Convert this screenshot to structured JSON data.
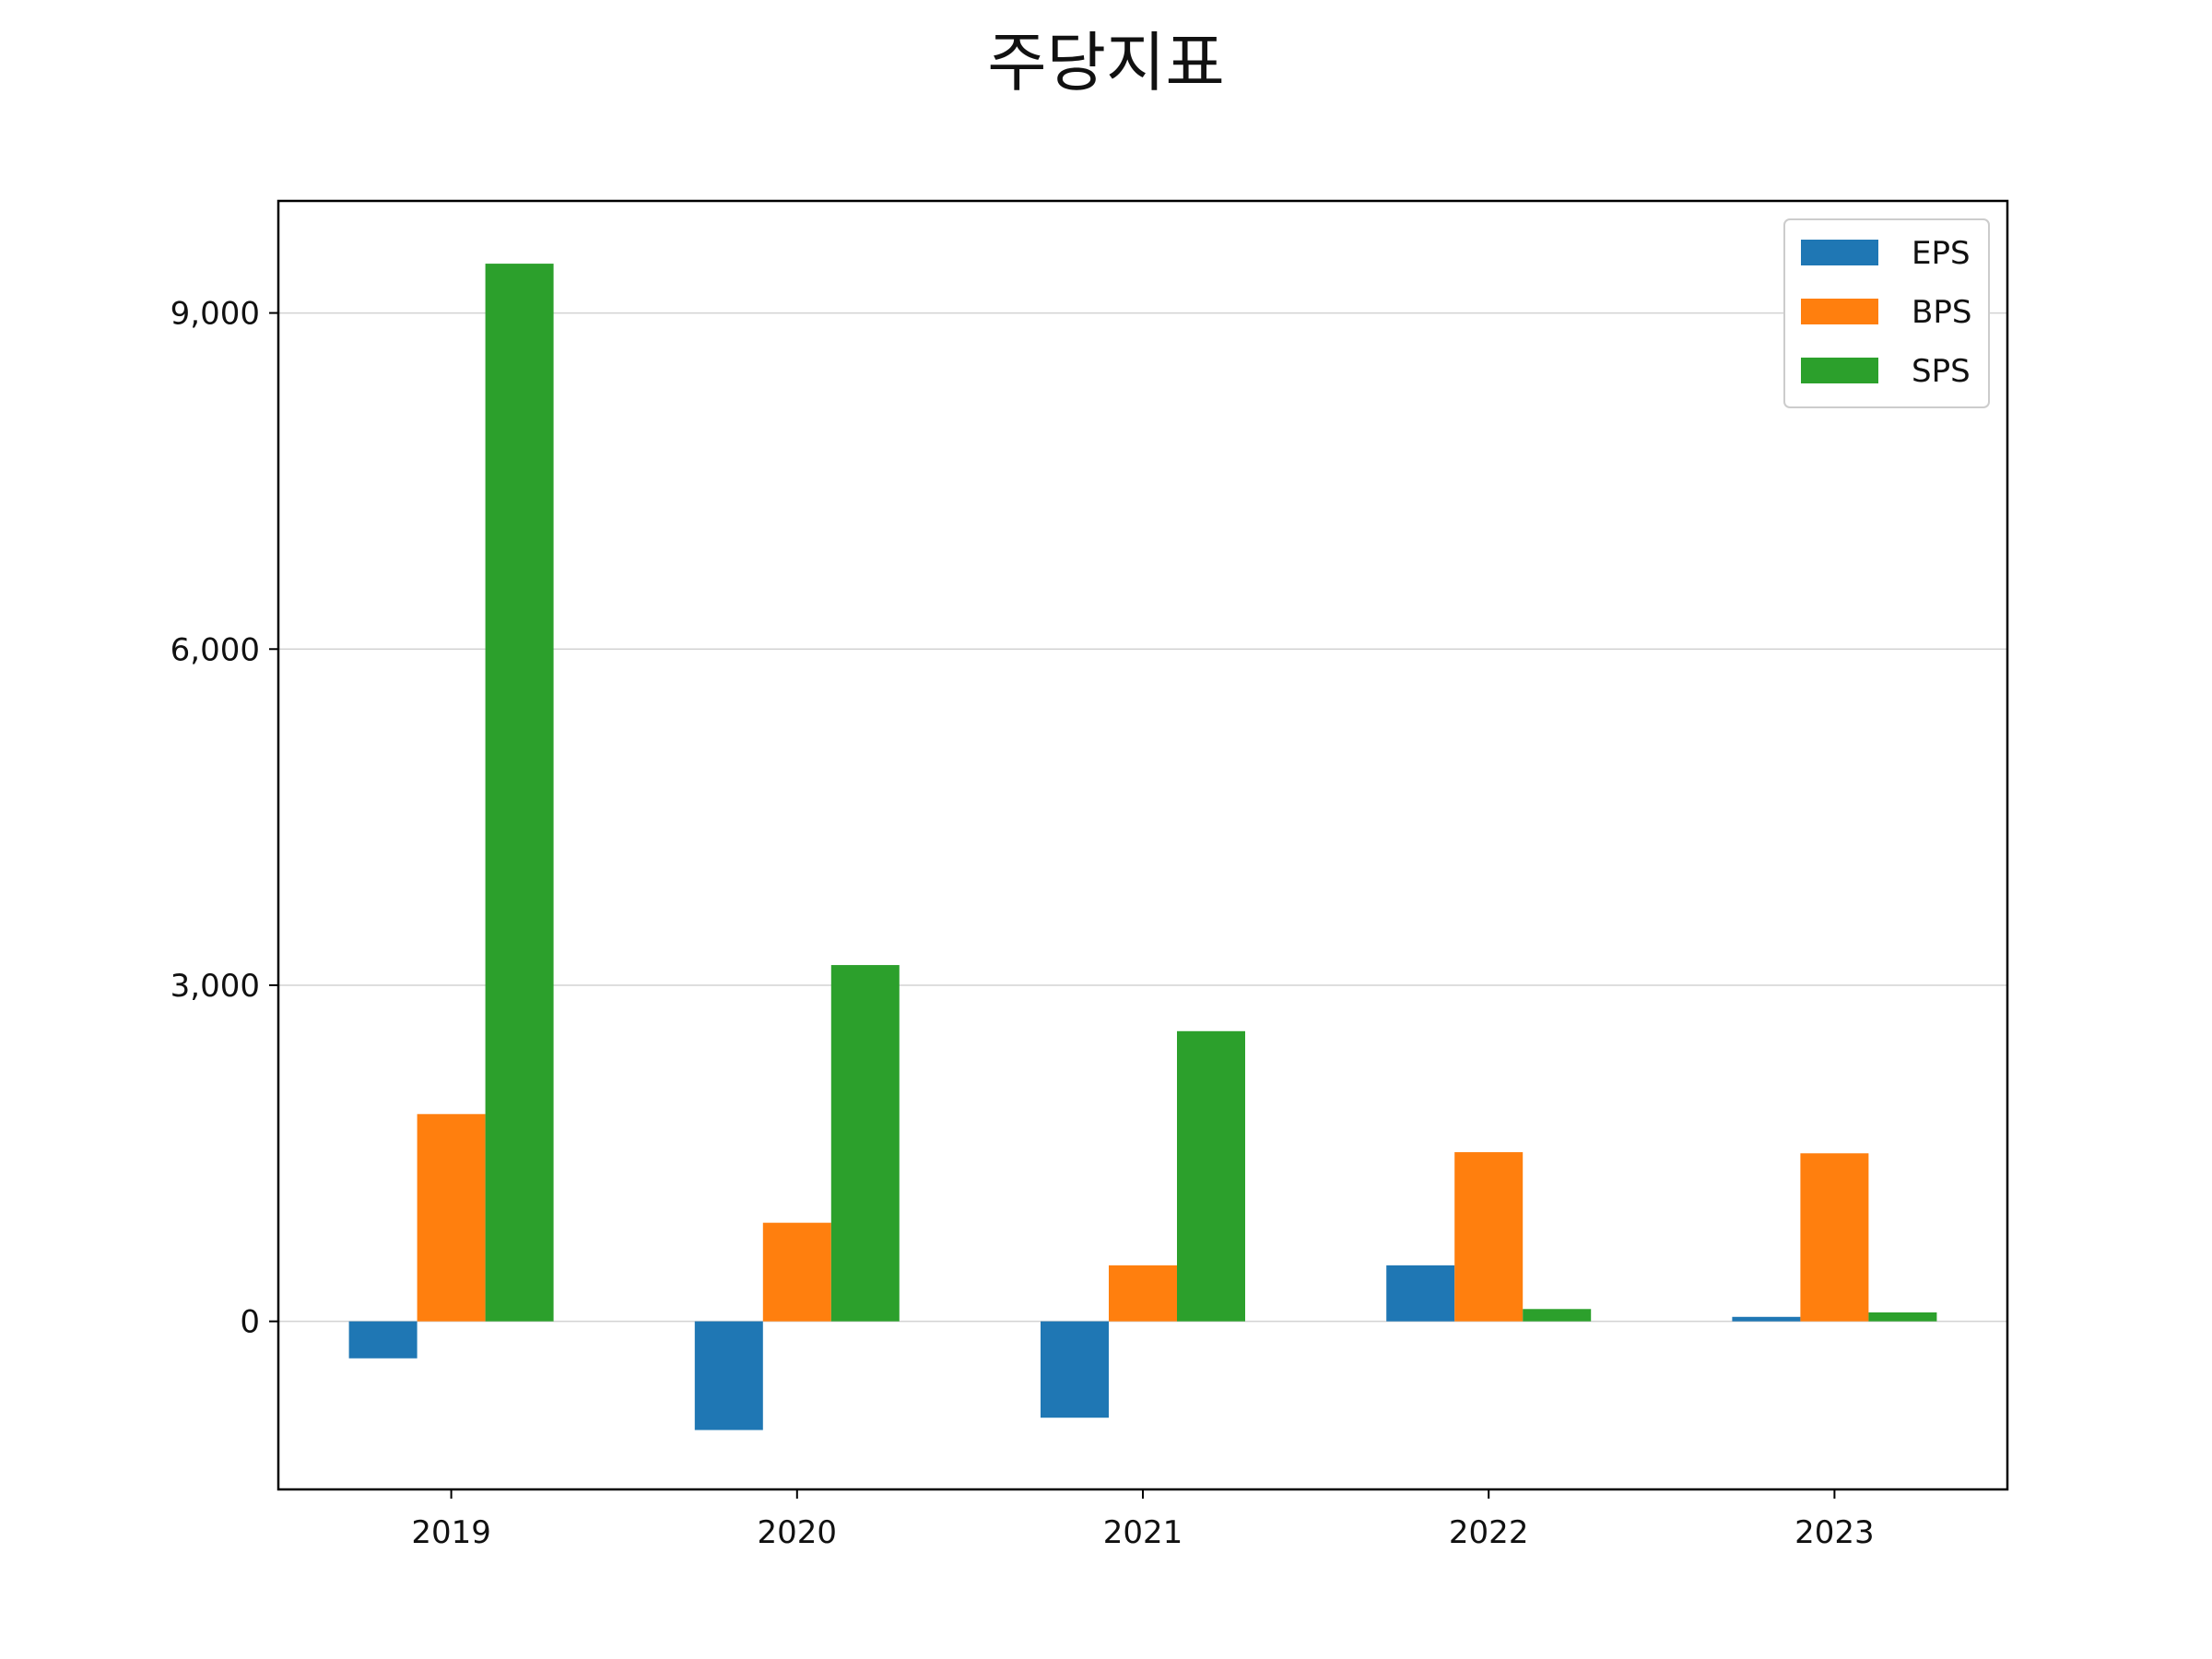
{
  "chart_data": {
    "type": "bar",
    "title": "주당지표",
    "xlabel": "",
    "ylabel": "",
    "categories": [
      "2019",
      "2020",
      "2021",
      "2022",
      "2023"
    ],
    "series": [
      {
        "name": "EPS",
        "color": "#1f77b4",
        "values": [
          -330,
          -970,
          -860,
          500,
          40
        ]
      },
      {
        "name": "BPS",
        "color": "#ff7f0e",
        "values": [
          1850,
          880,
          500,
          1510,
          1500
        ]
      },
      {
        "name": "SPS",
        "color": "#2ca02c",
        "values": [
          9440,
          3180,
          2590,
          110,
          80
        ]
      }
    ],
    "ylim": [
      -1500,
      10000
    ],
    "yticks": [
      0,
      3000,
      6000,
      9000
    ],
    "ytick_labels": [
      "0",
      "3,000",
      "6,000",
      "9,000"
    ],
    "grid": "horizontal",
    "legend": "top-right"
  }
}
